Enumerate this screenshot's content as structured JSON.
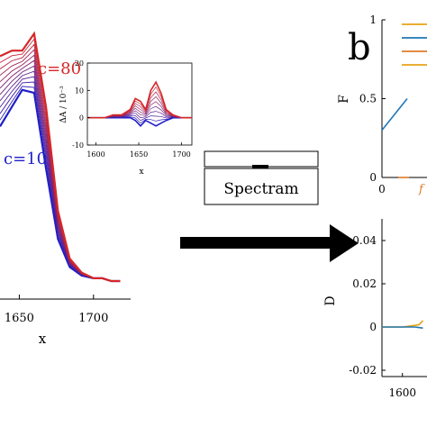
{
  "colors": {
    "red": "#d62728",
    "blue": "#1f1fc8",
    "orange": "#e07b28",
    "teal": "#1f77b4",
    "gold": "#e8a317",
    "axis": "#000000"
  },
  "labels": {
    "panel_b": "b",
    "instrument": "Spectram"
  },
  "chart_data": [
    {
      "id": "main-spectra",
      "type": "line",
      "xlabel": "x",
      "ylabel": "",
      "x_ticks": [
        "1650",
        "1700"
      ],
      "x_tick_values": [
        1650,
        1700
      ],
      "xlim": [
        1637,
        1725
      ],
      "ylim": [
        0,
        1
      ],
      "series_labels": [
        {
          "text": "c=80",
          "color": "red"
        },
        {
          "text": "c=10",
          "color": "blue"
        }
      ],
      "series": [
        {
          "name": "c=10",
          "x": [
            1637,
            1645,
            1652,
            1660,
            1668,
            1676,
            1684,
            1692,
            1700,
            1706,
            1712,
            1718
          ],
          "y": [
            0.55,
            0.62,
            0.68,
            0.67,
            0.4,
            0.15,
            0.05,
            0.02,
            0.01,
            0.01,
            0.0,
            0.0
          ]
        },
        {
          "name": "c=80",
          "x": [
            1637,
            1645,
            1652,
            1660,
            1668,
            1676,
            1684,
            1692,
            1700,
            1706,
            1712,
            1718
          ],
          "y": [
            0.8,
            0.82,
            0.82,
            0.88,
            0.62,
            0.25,
            0.08,
            0.03,
            0.01,
            0.01,
            0.0,
            0.0
          ]
        }
      ]
    },
    {
      "id": "inset-difference",
      "type": "line",
      "xlabel": "x",
      "ylabel": "ΔA / 10⁻³",
      "x_ticks": [
        "1600",
        "1650",
        "1700"
      ],
      "x_tick_values": [
        1600,
        1650,
        1700
      ],
      "y_ticks": [
        "20",
        "10",
        "0",
        "-10"
      ],
      "y_tick_values": [
        20,
        10,
        0,
        -10
      ],
      "xlim": [
        1590,
        1712
      ],
      "ylim": [
        -10,
        20
      ],
      "series": [
        {
          "name": "c=80",
          "x": [
            1590,
            1610,
            1620,
            1630,
            1640,
            1646,
            1652,
            1658,
            1664,
            1670,
            1676,
            1682,
            1690,
            1700,
            1712
          ],
          "y": [
            0,
            0,
            1,
            1,
            3,
            7,
            6,
            3,
            10,
            13,
            9,
            3,
            1,
            0,
            0
          ]
        },
        {
          "name": "c=10",
          "x": [
            1590,
            1610,
            1620,
            1630,
            1640,
            1646,
            1652,
            1658,
            1664,
            1670,
            1676,
            1682,
            1690,
            1700,
            1712
          ],
          "y": [
            0,
            0,
            0,
            0,
            0,
            -1,
            -3,
            -1,
            -2,
            -3,
            -2,
            -1,
            0,
            0,
            0
          ]
        }
      ]
    },
    {
      "id": "panel-b-top",
      "type": "line",
      "ylabel": "F",
      "x_ticks": [
        "0"
      ],
      "x_tick_values": [
        0
      ],
      "y_ticks": [
        "1",
        "0.5",
        "0"
      ],
      "y_tick_values": [
        1,
        0.5,
        0
      ],
      "xlim": [
        0,
        1
      ],
      "ylim": [
        0,
        1
      ],
      "partial_label": "f",
      "series": [
        {
          "name": "",
          "color": "teal",
          "x": [
            0.0,
            0.28
          ],
          "y": [
            0.3,
            0.5
          ]
        },
        {
          "name": "",
          "color": "orange",
          "x": [
            0.18,
            0.3
          ],
          "y": [
            0.0,
            0.0
          ]
        }
      ],
      "legend": {
        "position": "top-right",
        "colors": [
          "gold",
          "teal",
          "orange",
          "gold"
        ]
      }
    },
    {
      "id": "panel-b-bottom",
      "type": "line",
      "ylabel": "D",
      "x_ticks": [
        "1600"
      ],
      "x_tick_values": [
        1600
      ],
      "y_ticks": [
        "0.04",
        "0.02",
        "0",
        "-0.02"
      ],
      "y_tick_values": [
        0.04,
        0.02,
        0,
        -0.02
      ],
      "xlim": [
        1590,
        1612
      ],
      "ylim": [
        -0.02,
        0.05
      ],
      "series": [
        {
          "name": "",
          "color": "gold",
          "x": [
            1590,
            1600,
            1604,
            1608,
            1610
          ],
          "y": [
            0,
            0,
            0.0005,
            0.001,
            0.003
          ]
        },
        {
          "name": "",
          "color": "teal",
          "x": [
            1590,
            1606,
            1610
          ],
          "y": [
            0,
            0,
            -0.0005
          ]
        }
      ]
    }
  ]
}
